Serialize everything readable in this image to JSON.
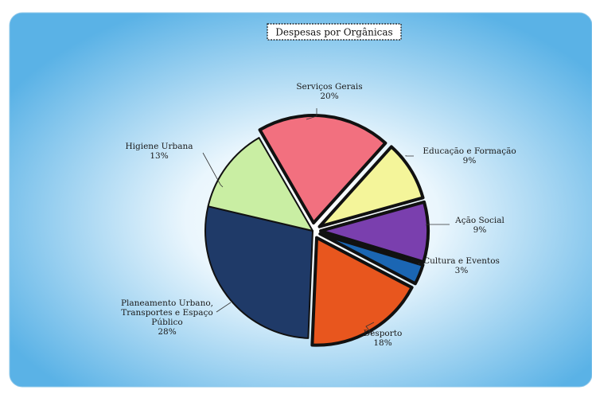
{
  "chart_data": {
    "type": "pie",
    "title": "Despesas por Orgânicas",
    "slices": [
      {
        "label": "Serviços Gerais",
        "value": 20,
        "pct_label": "20%",
        "color": "#f2707f",
        "exploded": true
      },
      {
        "label": "Educação e Formação",
        "value": 9,
        "pct_label": "9%",
        "color": "#f4f59a",
        "exploded": true
      },
      {
        "label": "Ação Social",
        "value": 9,
        "pct_label": "9%",
        "color": "#7a3fae",
        "exploded": true
      },
      {
        "label": "Cultura e Eventos",
        "value": 3,
        "pct_label": "3%",
        "color": "#1b66b3",
        "exploded": true
      },
      {
        "label": "Desporto",
        "value": 18,
        "pct_label": "18%",
        "color": "#e8561e",
        "exploded": true
      },
      {
        "label": "Planeamento Urbano, Transportes e Espaço Público",
        "label_lines": [
          "Planeamento Urbano,",
          "Transportes e Espaço",
          "Público"
        ],
        "value": 28,
        "pct_label": "28%",
        "color": "#1f3a68",
        "exploded": false
      },
      {
        "label": "Higiene Urbana",
        "value": 13,
        "pct_label": "13%",
        "color": "#c9eea3",
        "exploded": false
      }
    ],
    "start_angle_deg": -120,
    "legend": "none",
    "colors": {
      "background_center": "#ffffff",
      "background_edge": "#5ab2e6",
      "outline": "#111111"
    }
  }
}
